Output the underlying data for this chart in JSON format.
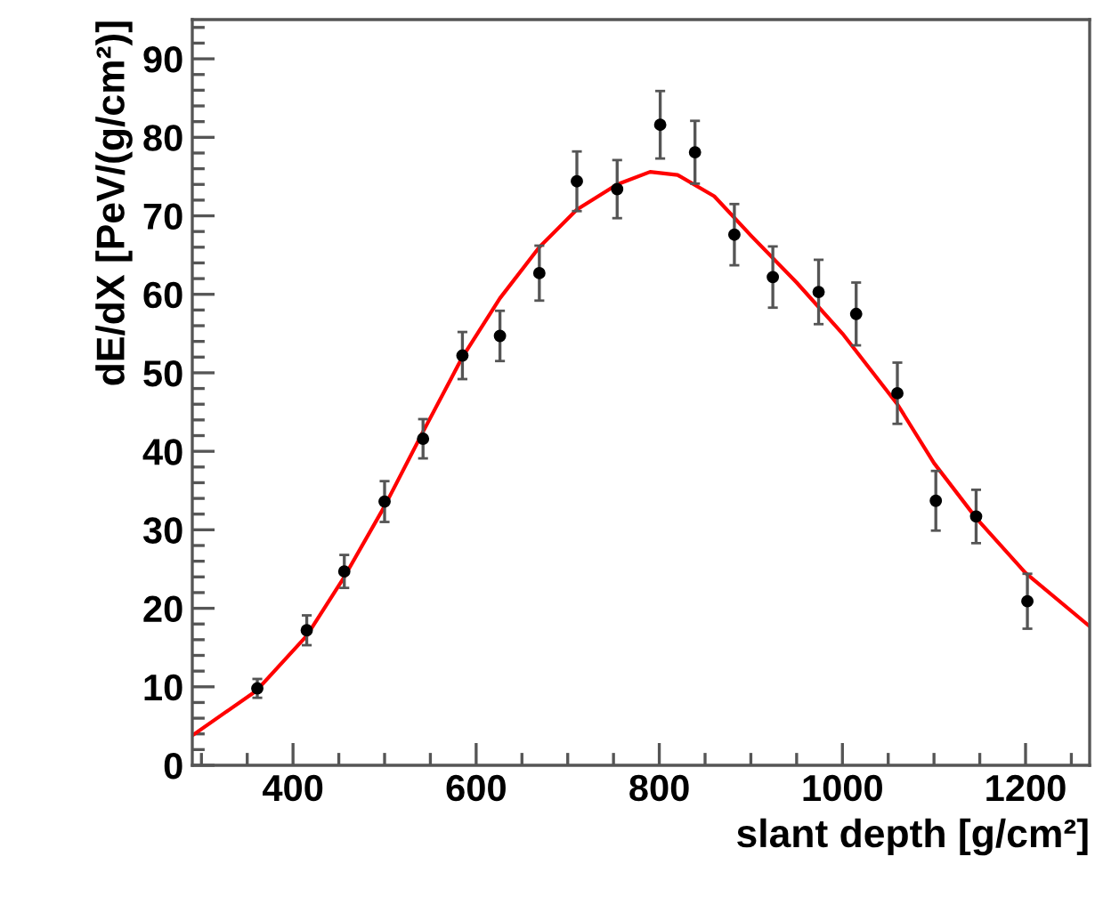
{
  "chart_data": {
    "type": "scatter",
    "xlabel": "slant depth [g/cm²]",
    "ylabel": "dE/dX [PeV/(g/cm²)]",
    "xlim": [
      290,
      1270
    ],
    "ylim": [
      0,
      95
    ],
    "xticks": [
      400,
      600,
      800,
      1000,
      1200
    ],
    "yticks": [
      0,
      10,
      20,
      30,
      40,
      50,
      60,
      70,
      80,
      90
    ],
    "grid": false,
    "legend": false,
    "series": [
      {
        "color": "#000000",
        "marker": "circle",
        "x": [
          361,
          415,
          456,
          500,
          542,
          585,
          626,
          669,
          710,
          754,
          801,
          839,
          882,
          924,
          974,
          1015,
          1060,
          1102,
          1146,
          1202
        ],
        "values": [
          9.8,
          17.2,
          24.7,
          33.6,
          41.6,
          52.2,
          54.7,
          62.7,
          74.4,
          73.4,
          81.6,
          78.1,
          67.6,
          62.2,
          60.3,
          57.5,
          47.4,
          33.7,
          31.7,
          20.9
        ],
        "errors": [
          1.2,
          1.9,
          2.1,
          2.6,
          2.5,
          3.0,
          3.2,
          3.5,
          3.8,
          3.7,
          4.3,
          4.0,
          3.9,
          3.9,
          4.1,
          4.0,
          3.9,
          3.8,
          3.4,
          3.5
        ]
      },
      {
        "type": "line",
        "color": "#ff0000",
        "line_style": "solid",
        "x": [
          290,
          360,
          415,
          456,
          500,
          542,
          585,
          626,
          669,
          710,
          754,
          790,
          820,
          860,
          900,
          950,
          1000,
          1040,
          1060,
          1100,
          1146,
          1200,
          1270
        ],
        "values": [
          3.8,
          9.5,
          16.5,
          24,
          33,
          42.5,
          52,
          59.5,
          66,
          70.8,
          74,
          75.6,
          75.2,
          72.5,
          67.5,
          61.5,
          55,
          49,
          46,
          38.5,
          31.5,
          24.5,
          17.7
        ]
      }
    ]
  }
}
